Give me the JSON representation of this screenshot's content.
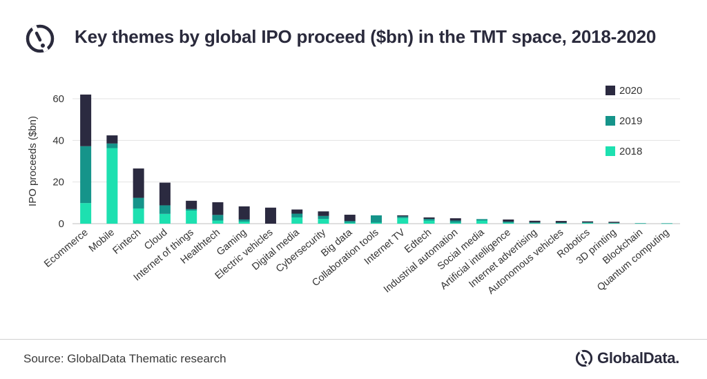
{
  "header": {
    "title": "Key themes by global IPO proceed ($bn) in the TMT space, 2018-2020",
    "logo_icon": "globaldata-logo-icon"
  },
  "footer": {
    "source": "Source: GlobalData Thematic research",
    "brand": "GlobalData."
  },
  "colors": {
    "2020": "#2b2a40",
    "2019": "#15948a",
    "2018": "#1de0b0",
    "grid": "#e3e3e3",
    "title": "#2a2a3c"
  },
  "chart_data": {
    "type": "bar",
    "stacked": true,
    "title": "Key themes by global IPO proceed ($bn) in the TMT space, 2018-2020",
    "xlabel": "",
    "ylabel": "IPO proceeds ($bn)",
    "ylim": [
      0,
      60
    ],
    "yticks": [
      0,
      20,
      40,
      60
    ],
    "grid": true,
    "legend_position": "right",
    "categories": [
      "Ecommerce",
      "Mobile",
      "Fintech",
      "Cloud",
      "Internet of things",
      "Healthtech",
      "Gaming",
      "Electric vehicles",
      "Digital media",
      "Cybersecurity",
      "Big data",
      "Collaboration tools",
      "Internet TV",
      "Edtech",
      "Industrial automation",
      "Social media",
      "Artificial intelligence",
      "Internet advertising",
      "Autonomous vehicles",
      "Robotics",
      "3D printing",
      "Blockchain",
      "Quantum computing"
    ],
    "series": [
      {
        "name": "2018",
        "values": [
          9.9,
          36.3,
          7.3,
          4.7,
          6.3,
          1.5,
          1.0,
          0.0,
          3.0,
          2.3,
          0.5,
          0.5,
          2.7,
          1.5,
          0.5,
          1.5,
          0.4,
          0.2,
          0.2,
          0.3,
          0.2,
          0.15,
          0.1
        ]
      },
      {
        "name": "2019",
        "values": [
          27.3,
          2.2,
          5.1,
          4.1,
          0.7,
          2.7,
          1.0,
          0.0,
          1.8,
          1.4,
          0.8,
          3.5,
          0.8,
          0.8,
          1.0,
          0.7,
          0.6,
          0.4,
          0.3,
          0.3,
          0.2,
          0.1,
          0.1
        ]
      },
      {
        "name": "2020",
        "values": [
          24.8,
          3.9,
          14.1,
          10.9,
          4.0,
          6.1,
          6.3,
          7.7,
          2.0,
          2.2,
          3.0,
          0.0,
          0.5,
          0.7,
          1.1,
          0.0,
          1.0,
          0.8,
          0.8,
          0.5,
          0.5,
          0.0,
          0.0
        ]
      }
    ]
  }
}
